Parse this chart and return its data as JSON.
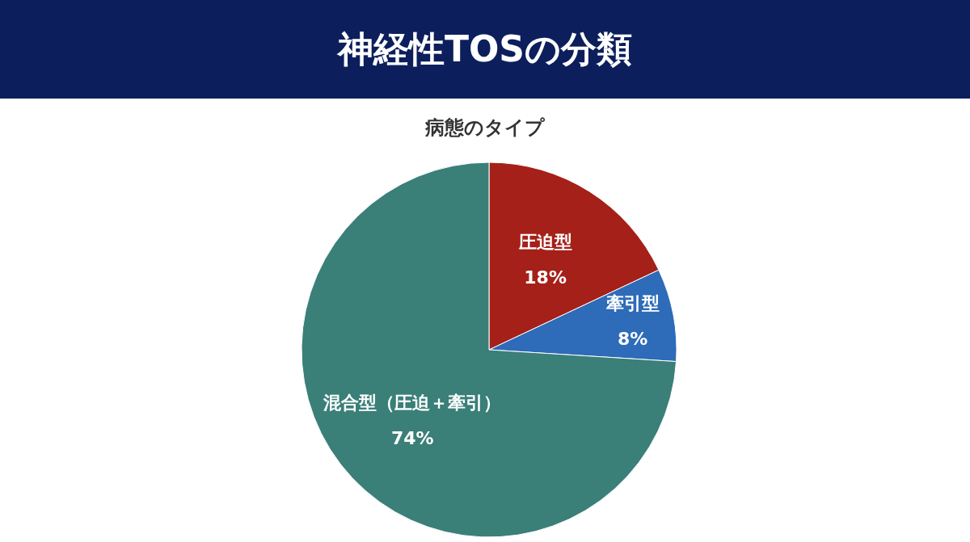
{
  "chart_data": {
    "type": "pie",
    "title": "神経性TOSの分類",
    "subtitle": "病態のタイプ",
    "categories": [
      "圧迫型",
      "牽引型",
      "混合型（圧迫＋牽引）"
    ],
    "values": [
      18,
      8,
      74
    ],
    "value_labels": [
      "18%",
      "8%",
      "74%"
    ],
    "colors": [
      "#a52019",
      "#2e6bb8",
      "#3a7f78"
    ]
  }
}
